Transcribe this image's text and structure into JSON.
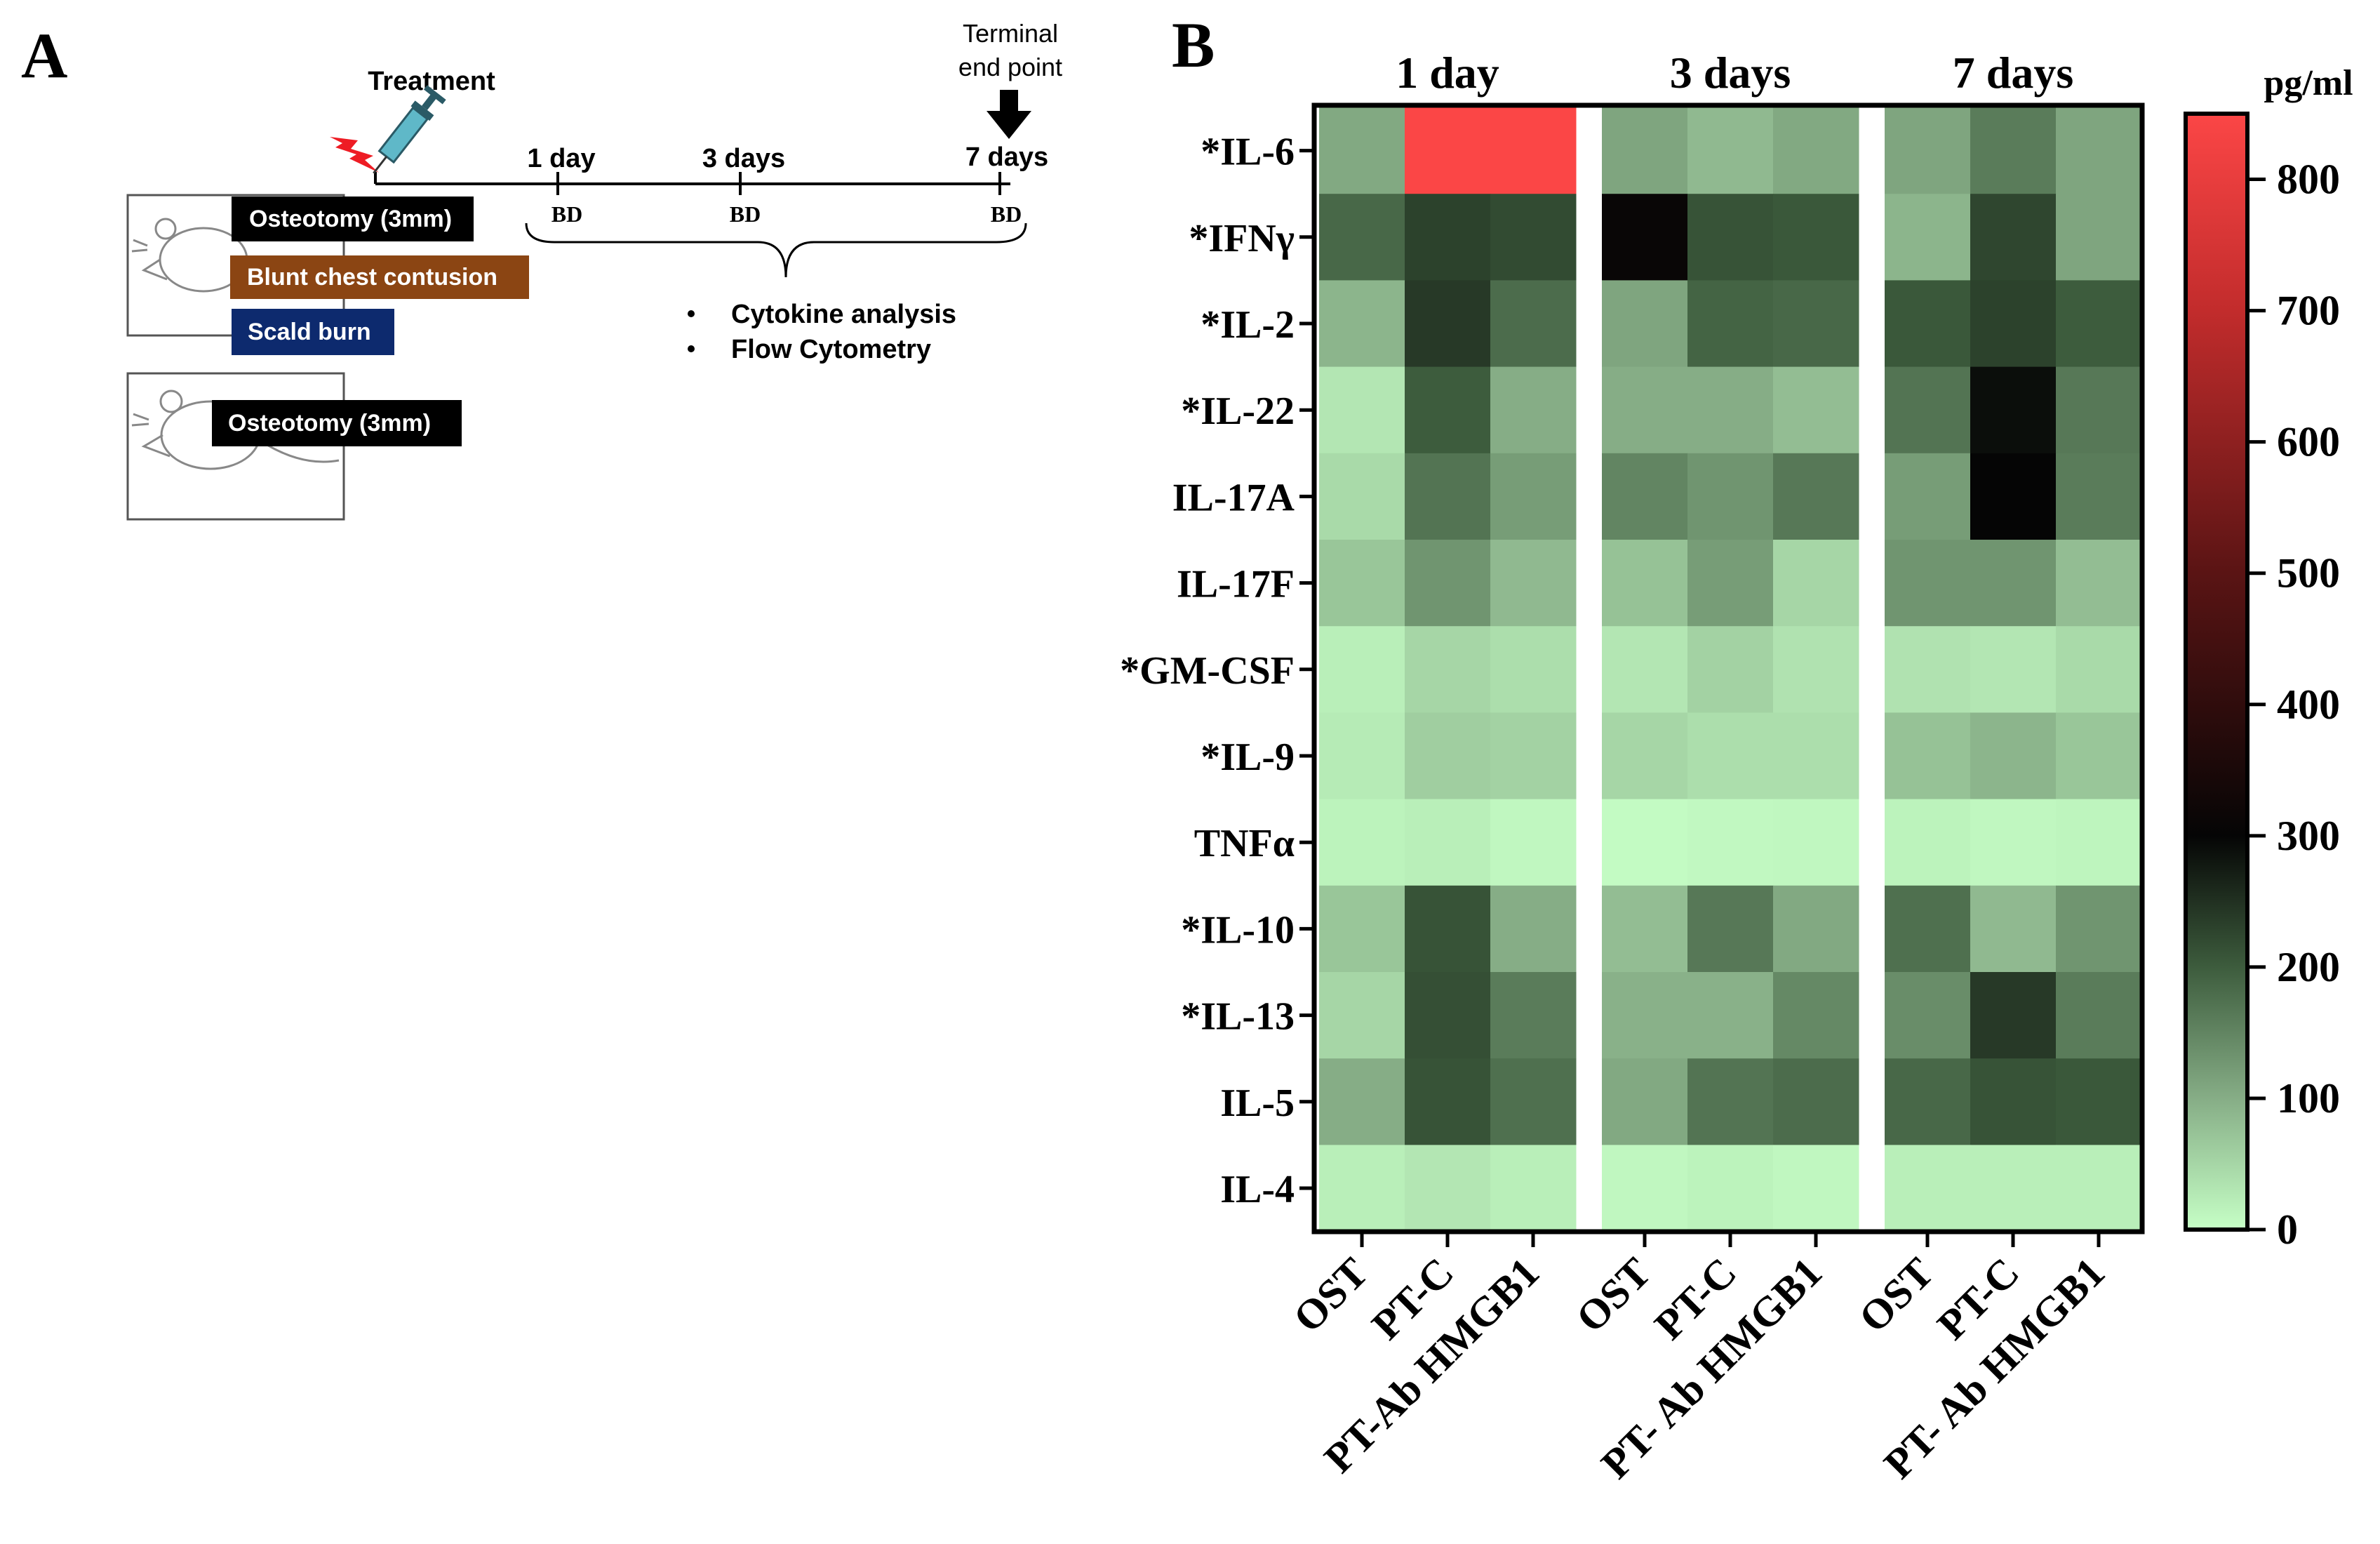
{
  "panel_a": {
    "label": "A",
    "treatment_label": "Treatment",
    "terminal_line1": "Terminal",
    "terminal_line2": "end point",
    "timepoints": [
      "1 day",
      "3 days",
      "7 days"
    ],
    "bd_label": "BD",
    "group1_boxes": [
      "Osteotomy (3mm)",
      "Blunt chest contusion",
      "Scald burn"
    ],
    "group2_boxes": [
      "Osteotomy (3mm)"
    ],
    "analyses": [
      "Cytokine analysis",
      "Flow Cytometry"
    ],
    "colors": {
      "black_box": "#000000",
      "brown_box": "#8b4513",
      "navy_box": "#0d2a6e",
      "lightning": "#ee1c24",
      "syringe": "#5fb8c8"
    },
    "icons": [
      "lightning-icon",
      "syringe-icon",
      "down-arrow-icon",
      "mouse-icon"
    ]
  },
  "panel_b": {
    "label": "B",
    "colorbar_unit": "pg/ml"
  },
  "chart_data": {
    "type": "heatmap",
    "groups": [
      "1 day",
      "3 days",
      "7 days"
    ],
    "conditions": [
      [
        "OST",
        "PT-C",
        "PT-Ab HMGB1"
      ],
      [
        "OST",
        "PT-C",
        "PT- Ab HMGB1"
      ],
      [
        "OST",
        "PT-C",
        "PT- Ab HMGB1"
      ]
    ],
    "rows": [
      "*IL-6",
      "*IFNγ",
      "*IL-2",
      "*IL-22",
      "IL-17A",
      "IL-17F",
      "*GM-CSF",
      "*IL-9",
      "TNFα",
      "*IL-10",
      "*IL-13",
      "IL-5",
      "IL-4"
    ],
    "values": [
      [
        105,
        850,
        850,
        110,
        85,
        105,
        110,
        160,
        110
      ],
      [
        185,
        230,
        220,
        310,
        210,
        205,
        90,
        225,
        110
      ],
      [
        90,
        240,
        180,
        110,
        190,
        185,
        205,
        230,
        200
      ],
      [
        30,
        200,
        100,
        100,
        100,
        80,
        170,
        290,
        165
      ],
      [
        45,
        170,
        120,
        150,
        130,
        165,
        120,
        300,
        160
      ],
      [
        70,
        130,
        85,
        75,
        120,
        50,
        130,
        130,
        80
      ],
      [
        20,
        50,
        40,
        30,
        55,
        35,
        35,
        30,
        45
      ],
      [
        25,
        60,
        55,
        50,
        40,
        40,
        75,
        90,
        70
      ],
      [
        15,
        20,
        10,
        5,
        8,
        10,
        15,
        10,
        12
      ],
      [
        70,
        210,
        100,
        80,
        165,
        105,
        175,
        85,
        130
      ],
      [
        50,
        215,
        160,
        95,
        95,
        145,
        140,
        240,
        160
      ],
      [
        100,
        210,
        175,
        105,
        170,
        180,
        185,
        210,
        205
      ],
      [
        20,
        30,
        20,
        10,
        15,
        10,
        20,
        20,
        20
      ]
    ],
    "colorbar": {
      "min": 0,
      "max": 850,
      "ticks": [
        0,
        100,
        200,
        300,
        400,
        500,
        600,
        700,
        800
      ],
      "stops": [
        {
          "value": 0,
          "color": "#c6ffc6"
        },
        {
          "value": 100,
          "color": "#86ad86"
        },
        {
          "value": 200,
          "color": "#3d5c3d"
        },
        {
          "value": 300,
          "color": "#050505"
        },
        {
          "value": 500,
          "color": "#5a1414"
        },
        {
          "value": 700,
          "color": "#c22c2c"
        },
        {
          "value": 850,
          "color": "#fb4646"
        }
      ]
    }
  }
}
